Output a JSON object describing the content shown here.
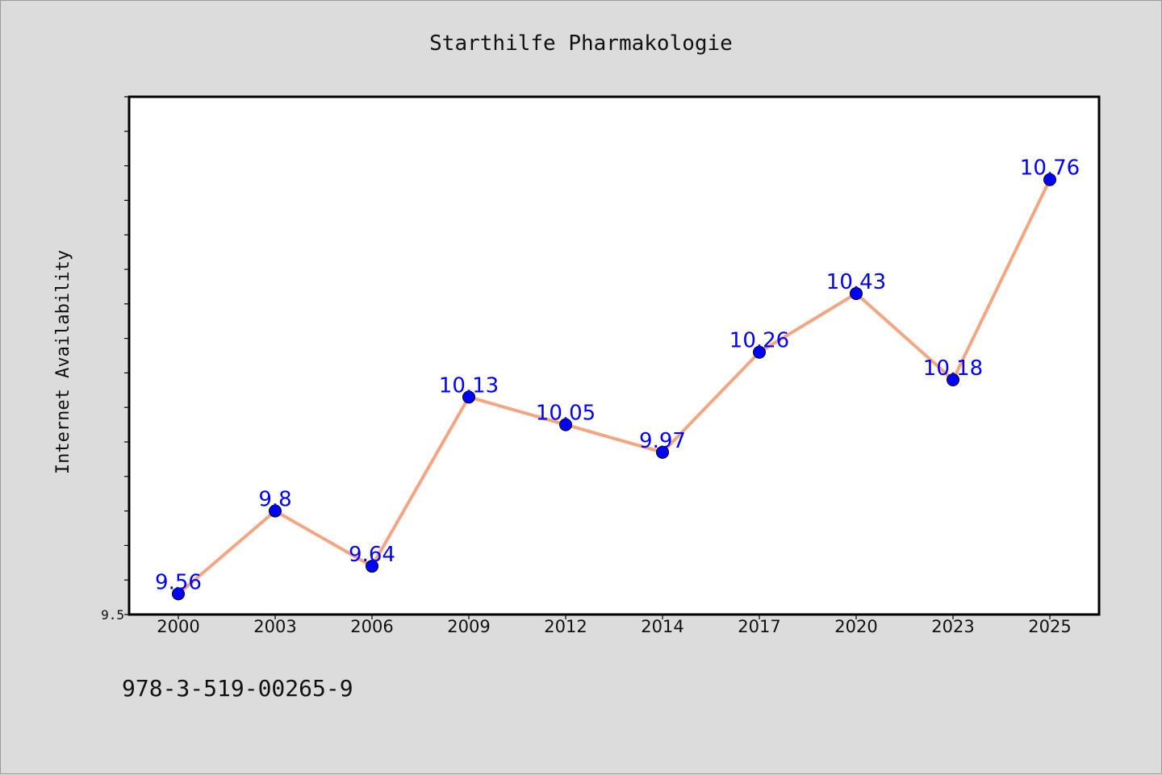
{
  "chart_data": {
    "type": "line",
    "title": "Starthilfe Pharmakologie",
    "xlabel": "",
    "ylabel": "Internet Availability",
    "categories": [
      "2000",
      "2003",
      "2006",
      "2009",
      "2012",
      "2014",
      "2017",
      "2020",
      "2023",
      "2025"
    ],
    "values": [
      9.56,
      9.8,
      9.64,
      10.13,
      10.05,
      9.97,
      10.26,
      10.43,
      10.18,
      10.76
    ],
    "data_labels": [
      "9.56",
      "9.8",
      "9.64",
      "10.13",
      "10.05",
      "9.97",
      "10.26",
      "10.43",
      "10.18",
      "10.76"
    ],
    "ylim": [
      9.5,
      11.0
    ],
    "yticks_labeled": [
      "9.5"
    ],
    "ytick_step": 0.1,
    "grid": false,
    "legend": "none",
    "line_color": "#f4a582",
    "marker_color": "#0000ff",
    "label_color": "#0000ff"
  },
  "footer": {
    "isbn": "978-3-519-00265-9"
  }
}
